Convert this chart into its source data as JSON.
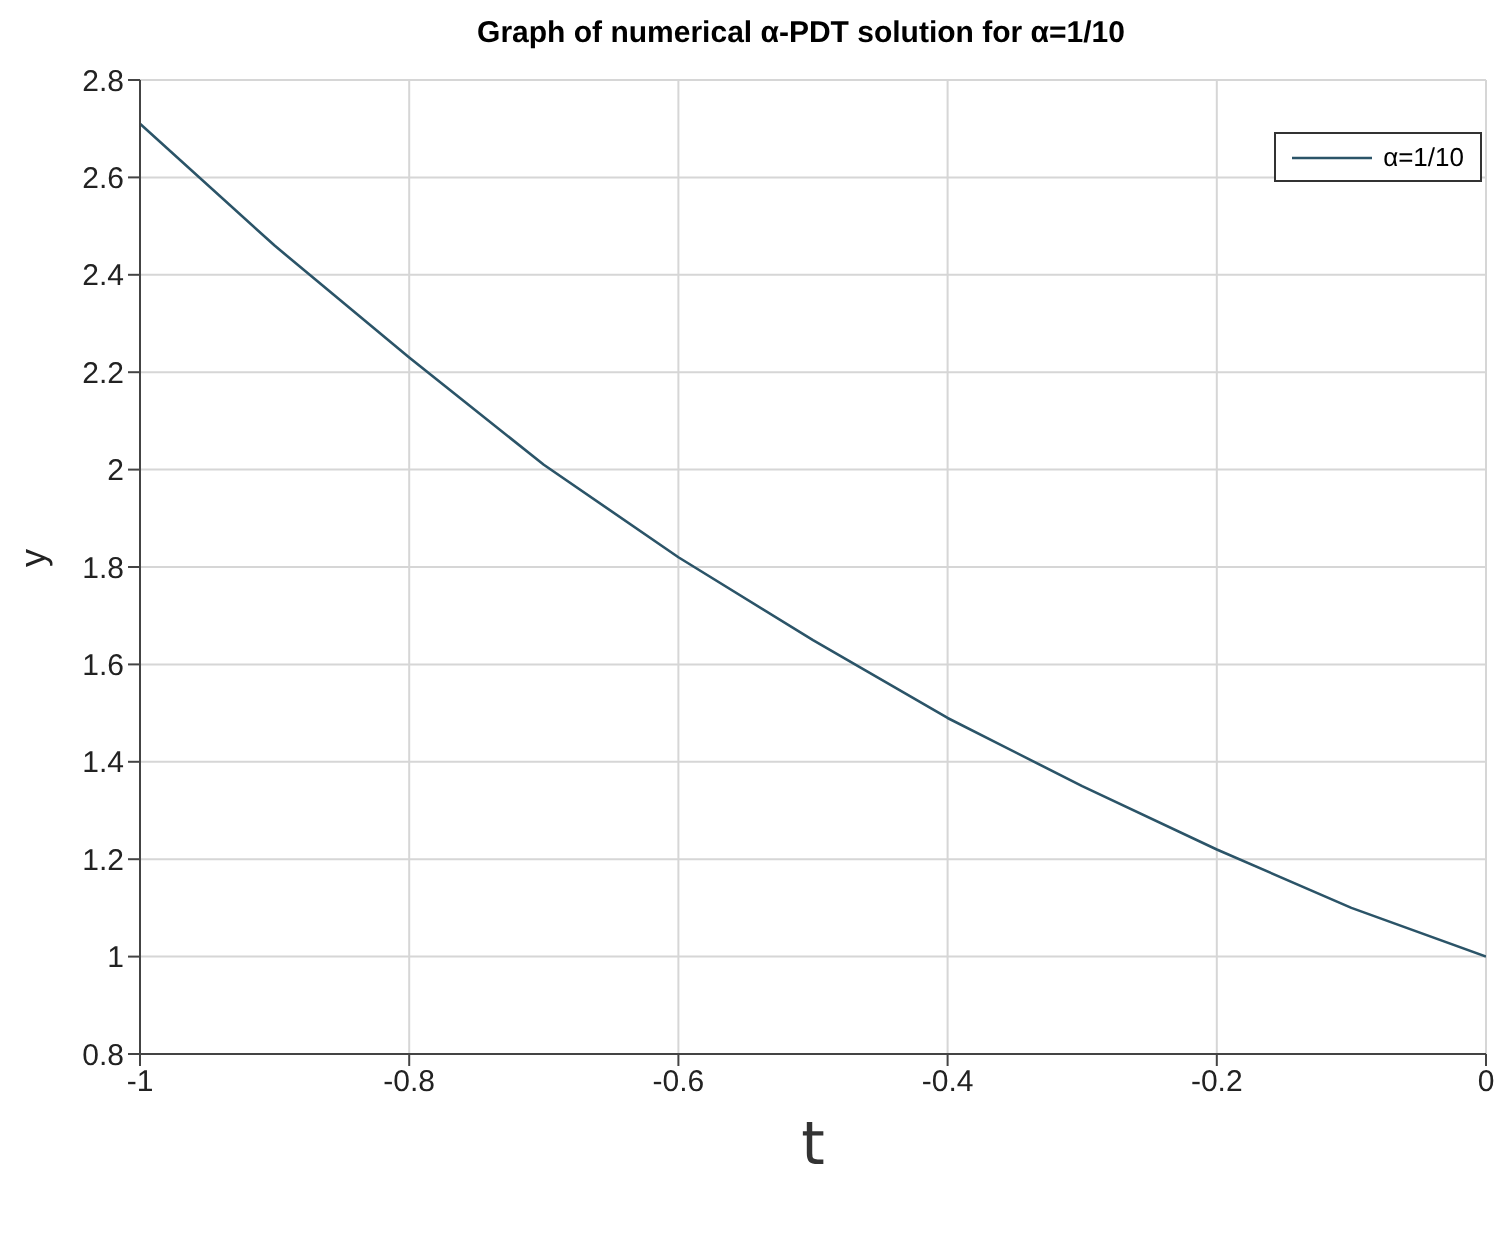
{
  "chart_data": {
    "type": "line",
    "title": "Graph of numerical α-PDT  solution for α=1/10",
    "xlabel": "t",
    "ylabel": "y",
    "x": [
      -1,
      -0.9,
      -0.8,
      -0.7,
      -0.6,
      -0.5,
      -0.4,
      -0.3,
      -0.2,
      -0.1,
      0
    ],
    "series": [
      {
        "name": "α=1/10",
        "color": "#2b5468",
        "values": [
          2.71,
          2.46,
          2.23,
          2.01,
          1.82,
          1.65,
          1.49,
          1.35,
          1.22,
          1.1,
          1.0
        ]
      }
    ],
    "xlim": [
      -1,
      0
    ],
    "xticks": [
      -1,
      -0.8,
      -0.6,
      -0.4,
      -0.2,
      0
    ],
    "ylim": [
      0.8,
      2.8
    ],
    "yticks": [
      0.8,
      1,
      1.2,
      1.4,
      1.6,
      1.8,
      2,
      2.2,
      2.4,
      2.6,
      2.8
    ],
    "grid": true,
    "legend": "top right",
    "marker": "none",
    "line_style": "solid"
  }
}
